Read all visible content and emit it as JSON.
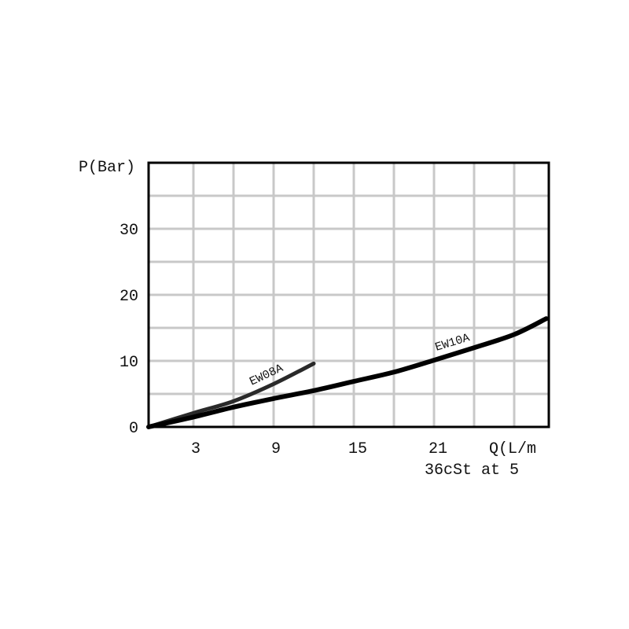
{
  "chart_data": {
    "type": "line",
    "title": "",
    "ylabel": "P(Bar)",
    "xlabel": "Q(L/m",
    "note": "36cSt at 5",
    "xlim": [
      0,
      29.6
    ],
    "ylim": [
      0,
      40
    ],
    "x_ticks": [
      3,
      9,
      15,
      21
    ],
    "x_tick_labels": [
      "3",
      "9",
      "15",
      "21"
    ],
    "y_ticks": [
      0,
      10,
      20,
      30
    ],
    "y_tick_labels": [
      "0",
      "10",
      "20",
      "30"
    ],
    "grid": true,
    "grid_x_step": 3,
    "grid_y_step": 5,
    "grid_color": "#c8c8c8",
    "series": [
      {
        "name": "EW08A",
        "color": "#2a2a2a",
        "x": [
          0,
          3,
          6,
          9,
          12
        ],
        "y": [
          0,
          2.1,
          3.9,
          6.5,
          9.6
        ]
      },
      {
        "name": "EW10A",
        "color": "#000000",
        "x": [
          0,
          3,
          6,
          9,
          12,
          15,
          18,
          21,
          24,
          27,
          29.4
        ],
        "y": [
          0,
          1.5,
          3.0,
          4.3,
          5.5,
          6.9,
          8.3,
          10.1,
          12.0,
          14.0,
          16.4
        ]
      }
    ]
  }
}
